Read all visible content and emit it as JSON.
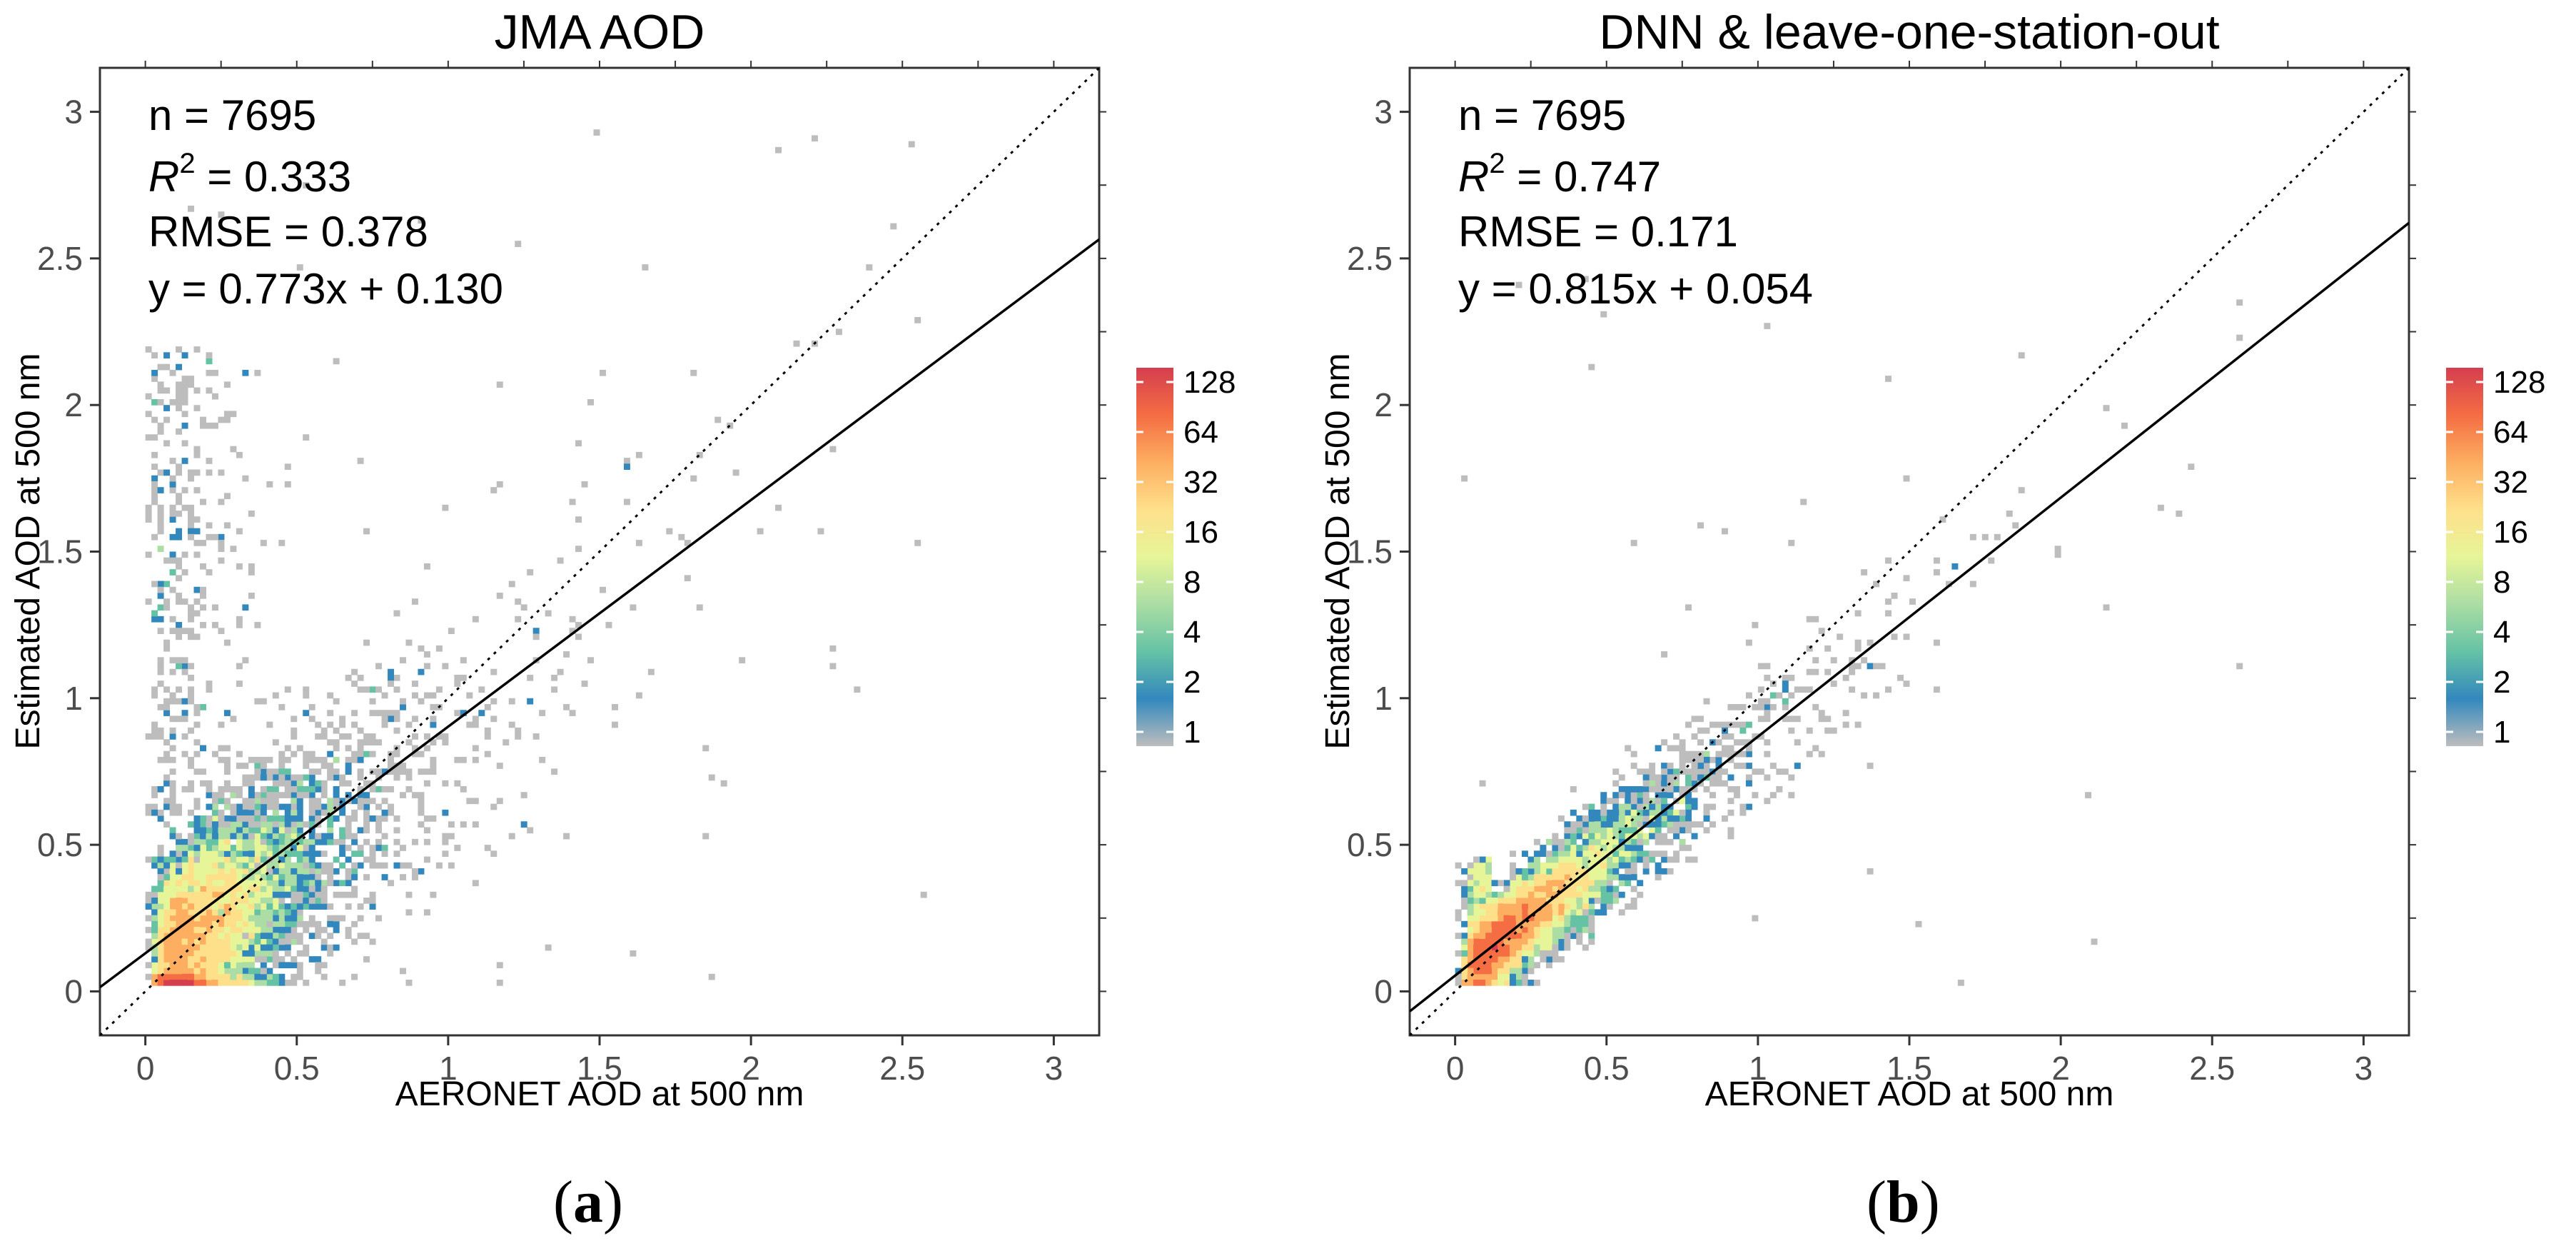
{
  "chart_data": [
    {
      "type": "heatmap",
      "title": "JMA AOD",
      "xlabel": "AERONET AOD at 500 nm",
      "ylabel": "Estimated AOD at 500 nm",
      "xlim": [
        -0.15,
        3.15
      ],
      "ylim": [
        -0.15,
        3.15
      ],
      "x_ticks": [
        0,
        0.5,
        1,
        1.5,
        2,
        2.5,
        3
      ],
      "x_tick_labels": [
        "0",
        "0.5",
        "1",
        "1.5",
        "2",
        "2.5",
        "3"
      ],
      "y_ticks": [
        0,
        0.5,
        1,
        1.5,
        2,
        2.5,
        3
      ],
      "y_tick_labels": [
        "0",
        "0.5",
        "1",
        "1.5",
        "2",
        "2.5",
        "3"
      ],
      "stats": {
        "n_text": "n = 7695",
        "r2_label": "R",
        "r2_sup": "2",
        "r2_value": " = 0.333",
        "rmse_text": "RMSE = 0.378",
        "eq_text": "y = 0.773x + 0.130"
      },
      "fit": {
        "slope": 0.773,
        "intercept": 0.13
      },
      "one_to_one": true,
      "colorbar": {
        "labels": [
          "128",
          "64",
          "32",
          "16",
          "8",
          "4",
          "2",
          "1"
        ],
        "colors": [
          "#d53e4f",
          "#f46d43",
          "#fdae61",
          "#fee08b",
          "#e6f598",
          "#abdda4",
          "#66c2a5",
          "#3288bd",
          "#bdbdbd"
        ]
      },
      "bin_width": 0.02,
      "density_model": {
        "dist": "jma",
        "count": 7695,
        "spread_y": 0.22
      }
    },
    {
      "type": "heatmap",
      "title": "DNN & leave-one-station-out",
      "xlabel": "AERONET AOD at 500 nm",
      "ylabel": "Estimated AOD at 500 nm",
      "xlim": [
        -0.15,
        3.15
      ],
      "ylim": [
        -0.15,
        3.15
      ],
      "x_ticks": [
        0,
        0.5,
        1,
        1.5,
        2,
        2.5,
        3
      ],
      "x_tick_labels": [
        "0",
        "0.5",
        "1",
        "1.5",
        "2",
        "2.5",
        "3"
      ],
      "y_ticks": [
        0,
        0.5,
        1,
        1.5,
        2,
        2.5,
        3
      ],
      "y_tick_labels": [
        "0",
        "0.5",
        "1",
        "1.5",
        "2",
        "2.5",
        "3"
      ],
      "stats": {
        "n_text": "n = 7695",
        "r2_label": "R",
        "r2_sup": "2",
        "r2_value": " = 0.747",
        "rmse_text": "RMSE = 0.171",
        "eq_text": "y = 0.815x + 0.054"
      },
      "fit": {
        "slope": 0.815,
        "intercept": 0.054
      },
      "one_to_one": true,
      "colorbar": {
        "labels": [
          "128",
          "64",
          "32",
          "16",
          "8",
          "4",
          "2",
          "1"
        ],
        "colors": [
          "#d53e4f",
          "#f46d43",
          "#fdae61",
          "#fee08b",
          "#e6f598",
          "#abdda4",
          "#66c2a5",
          "#3288bd",
          "#bdbdbd"
        ]
      },
      "bin_width": 0.02,
      "density_model": {
        "dist": "dnn",
        "count": 7695,
        "spread_y": 0.12
      }
    }
  ],
  "panel_labels": [
    "a",
    "b"
  ]
}
